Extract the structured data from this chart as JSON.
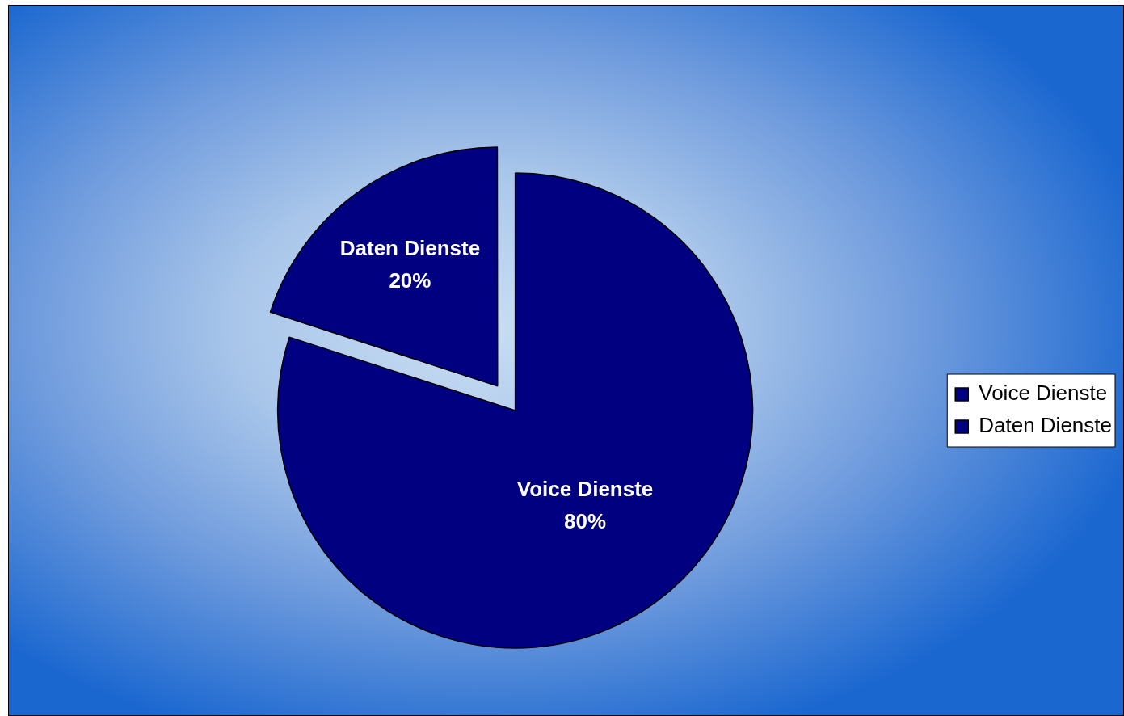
{
  "chart_data": {
    "type": "pie",
    "categories": [
      "Voice Dienste",
      "Daten Dienste"
    ],
    "values": [
      80,
      20
    ],
    "colors": [
      "#000080",
      "#000080"
    ],
    "value_labels": [
      "80%",
      "20%"
    ],
    "legend": "right"
  }
}
